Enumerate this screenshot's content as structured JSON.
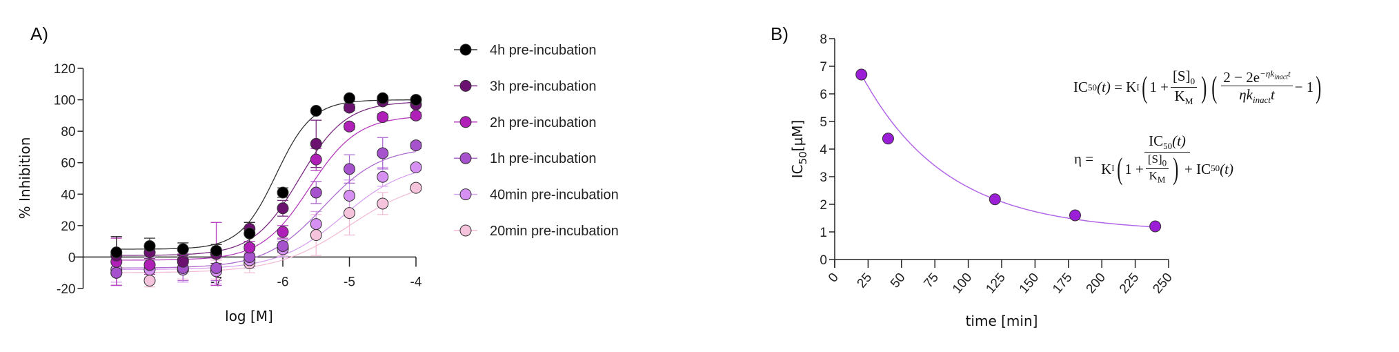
{
  "chart_data": [
    {
      "type": "scatter",
      "panel_label": "A)",
      "title": "",
      "xlabel": "log [M]",
      "ylabel": "% Inhibition",
      "xlim": [
        -9,
        -4
      ],
      "ylim": [
        -20,
        120
      ],
      "xticks": [
        -7,
        -6,
        -5,
        -4
      ],
      "xtick_labels": [
        "-7",
        "-6",
        "-5",
        "-4"
      ],
      "yticks": [
        -20,
        0,
        20,
        40,
        60,
        80,
        100,
        120
      ],
      "ytick_labels": [
        "-20",
        "0",
        "20",
        "40",
        "60",
        "80",
        "100",
        "120"
      ],
      "legend_position": "right",
      "x": [
        -8.5,
        -8,
        -7.5,
        -7,
        -6.5,
        -6,
        -5.5,
        -5,
        -4.5,
        -4
      ],
      "series": [
        {
          "name": "4h pre-incubation",
          "color": "#000000",
          "curve_color": "#333333",
          "values": [
            3,
            7,
            5,
            4,
            15,
            41,
            93,
            101,
            101,
            100
          ],
          "errors": [
            10,
            5,
            4,
            4,
            7,
            3,
            1,
            1,
            1,
            1
          ],
          "fit": {
            "bottom": 5,
            "top": 100,
            "logIC50": -6.1,
            "hill": 1.6
          }
        },
        {
          "name": "3h pre-incubation",
          "color": "#6b1270",
          "curve_color": "#7a2a80",
          "values": [
            1,
            3,
            -3,
            2,
            18,
            31,
            72,
            95,
            99,
            97
          ],
          "errors": [
            12,
            4,
            4,
            6,
            4,
            5,
            15,
            2,
            1,
            1
          ],
          "fit": {
            "bottom": 1,
            "top": 99,
            "logIC50": -5.75,
            "hill": 1.25
          }
        },
        {
          "name": "2h pre-incubation",
          "color": "#b020b8",
          "curve_color": "#b53cbc",
          "values": [
            -3,
            -5,
            -2,
            2,
            6,
            16,
            62,
            83,
            89,
            90
          ],
          "errors": [
            15,
            6,
            4,
            20,
            4,
            4,
            7,
            2,
            2,
            2
          ],
          "fit": {
            "bottom": -2,
            "top": 90,
            "logIC50": -5.6,
            "hill": 1.2
          }
        },
        {
          "name": "1h pre-incubation",
          "color": "#a552cc",
          "curve_color": "#ad6ad0",
          "values": [
            -10,
            -5,
            -7,
            -7,
            0,
            7,
            41,
            56,
            66,
            71
          ],
          "errors": [
            8,
            5,
            8,
            8,
            4,
            4,
            7,
            9,
            10,
            2
          ],
          "fit": {
            "bottom": -7,
            "top": 70,
            "logIC50": -5.4,
            "hill": 1.0
          }
        },
        {
          "name": "40min pre-incubation",
          "color": "#d590f2",
          "curve_color": "#d8a2f0",
          "values": [
            -8,
            -8,
            -8,
            -9,
            -2,
            5,
            21,
            39,
            51,
            57
          ],
          "errors": [
            8,
            5,
            8,
            8,
            5,
            5,
            8,
            10,
            6,
            2
          ],
          "fit": {
            "bottom": -8,
            "top": 60,
            "logIC50": -5.1,
            "hill": 0.9
          }
        },
        {
          "name": "20min pre-incubation",
          "color": "#f5c4dc",
          "curve_color": "#f3bcd6",
          "values": [
            -10,
            -15,
            -8,
            -8,
            -4,
            6,
            14,
            28,
            34,
            44
          ],
          "errors": [
            6,
            4,
            6,
            6,
            6,
            5,
            13,
            14,
            7,
            2
          ],
          "fit": {
            "bottom": -10,
            "top": 50,
            "logIC50": -5.0,
            "hill": 0.8
          }
        }
      ]
    },
    {
      "type": "scatter",
      "panel_label": "B)",
      "title": "",
      "xlabel": "time [min]",
      "ylabel_main": "IC",
      "ylabel_sub": "50",
      "ylabel_unit": "[µM]",
      "xlim": [
        0,
        250
      ],
      "ylim": [
        0,
        8
      ],
      "xticks": [
        0,
        25,
        50,
        75,
        100,
        125,
        150,
        175,
        200,
        225,
        250
      ],
      "xtick_labels": [
        "0",
        "25",
        "50",
        "75",
        "100",
        "125",
        "150",
        "175",
        "200",
        "225",
        "250"
      ],
      "yticks": [
        0,
        1,
        2,
        3,
        4,
        5,
        6,
        7,
        8
      ],
      "ytick_labels": [
        "0",
        "1",
        "2",
        "3",
        "4",
        "5",
        "6",
        "7",
        "8"
      ],
      "point_color": "#9b1fd6",
      "curve_color": "#b266e8",
      "x": [
        20,
        40,
        120,
        180,
        240
      ],
      "values": [
        6.7,
        4.38,
        2.18,
        1.6,
        1.2
      ],
      "fit": {
        "plateau": 1.0,
        "span": 7.81,
        "k": 0.01575
      },
      "equations": {
        "eq1": {
          "lhs": "IC",
          "lhs_sub": "50",
          "lhs_arg": "(t)",
          "eq": "=",
          "K": "K",
          "K_sub": "I",
          "one_plus": "1 +",
          "s_num": "[S]",
          "s_sub": "0",
          "km": "K",
          "km_sub": "M",
          "num": "2 − 2e",
          "num_sup": "−ηk",
          "num_sup_sub": "inact",
          "num_sup_t": "t",
          "den": "ηk",
          "den_sub": "inact",
          "den_t": "t",
          "minus_one": "− 1"
        },
        "eq2": {
          "lhs": "η =",
          "num": "IC",
          "num_sub": "50",
          "num_arg": "(t)",
          "K": "K",
          "K_sub": "I",
          "one_plus": "1 +",
          "s_num": "[S]",
          "s_sub": "0",
          "km": "K",
          "km_sub": "M",
          "plus_ic": "+ IC",
          "plus_ic_sub": "50",
          "plus_ic_arg": "(t)"
        }
      }
    }
  ]
}
